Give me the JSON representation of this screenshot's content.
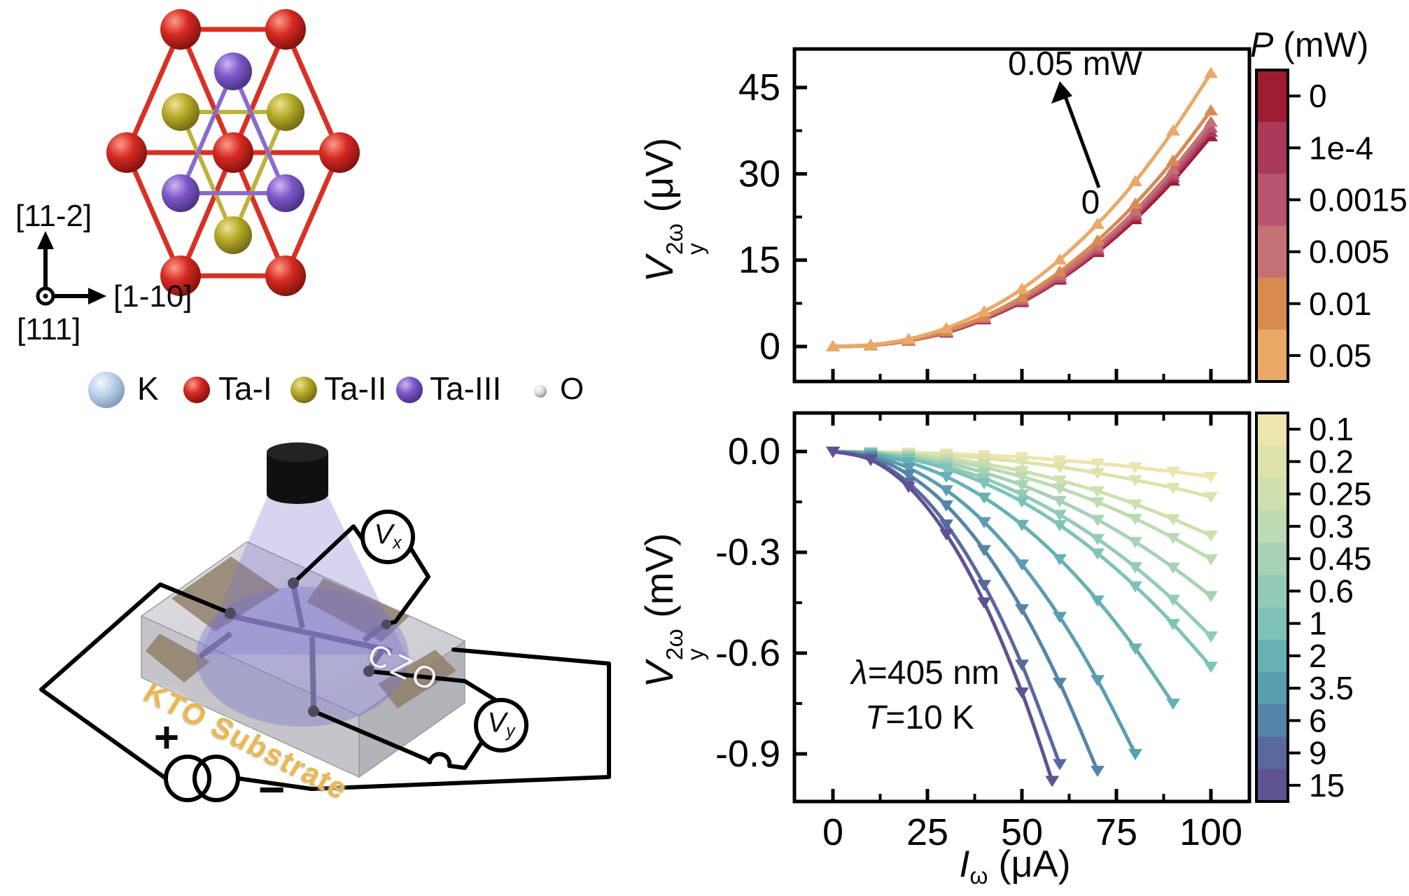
{
  "crystal": {
    "axes": {
      "up": "[11-2]",
      "right": "[1-10]",
      "out": "[111]"
    },
    "legend": {
      "items": [
        {
          "label": "K",
          "color": "#b8cfe8"
        },
        {
          "label": "Ta-I",
          "color": "#d42a22"
        },
        {
          "label": "Ta-II",
          "color": "#b5aa28"
        },
        {
          "label": "Ta-III",
          "color": "#7c58c8"
        },
        {
          "label": "O",
          "color": "#d8d8d8"
        }
      ]
    }
  },
  "device": {
    "czo_label": "CZO",
    "substrate_label": "KTO Substrate",
    "vx": {
      "sym": "V",
      "sub": "x"
    },
    "vy": {
      "sym": "V",
      "sub": "y"
    },
    "plus": "+",
    "minus": "−"
  },
  "chart_data": [
    {
      "type": "line",
      "ylabel": {
        "sym": "V",
        "sub": "y",
        "sup": "2ω",
        "unit": "(μV)"
      },
      "axis": {
        "x_ticks": {
          "values": [
            0,
            25,
            50,
            75,
            100
          ],
          "labels": [
            "0",
            "25",
            "50",
            "75",
            "100"
          ]
        },
        "y_ticks": {
          "values": [
            0,
            15,
            30,
            45
          ],
          "labels": [
            "0",
            "15",
            "30",
            "45"
          ]
        },
        "xlim": [
          -10,
          110
        ],
        "ylim": [
          -6,
          51
        ]
      },
      "annotations": {
        "max_label": "0.05 mW",
        "min_label": "0"
      },
      "colorbar": {
        "title": {
          "sym": "P",
          "unit": " (mW)"
        },
        "labels": [
          "0",
          "1e-4",
          "0.0015",
          "0.005",
          "0.01",
          "0.05"
        ],
        "colors": [
          "#9e1c30",
          "#aa3a59",
          "#b85573",
          "#c47173",
          "#d98a51",
          "#e9a967"
        ]
      },
      "series": [
        {
          "name": "0",
          "color": "#9e1c30",
          "x": [
            0,
            10,
            20,
            30,
            40,
            50,
            60,
            70,
            80,
            90,
            100
          ],
          "values": [
            0,
            0.2,
            1.0,
            2.4,
            4.7,
            7.7,
            11.6,
            16.4,
            22.1,
            28.8,
            36.5
          ]
        },
        {
          "name": "1e-4",
          "color": "#aa3a59",
          "x": [
            0,
            10,
            20,
            30,
            40,
            50,
            60,
            70,
            80,
            90,
            100
          ],
          "values": [
            0,
            0.2,
            1.0,
            2.5,
            4.8,
            7.8,
            11.8,
            16.7,
            22.6,
            29.4,
            37.3
          ]
        },
        {
          "name": "0.0015",
          "color": "#b85573",
          "x": [
            0,
            10,
            20,
            30,
            40,
            50,
            60,
            70,
            80,
            90,
            100
          ],
          "values": [
            0,
            0.2,
            1.0,
            2.5,
            4.9,
            8.0,
            12.0,
            17.0,
            23.0,
            30.0,
            38.0
          ]
        },
        {
          "name": "0.005",
          "color": "#c47173",
          "x": [
            0,
            10,
            20,
            30,
            40,
            50,
            60,
            70,
            80,
            90,
            100
          ],
          "values": [
            0,
            0.2,
            1.0,
            2.6,
            5.0,
            8.2,
            12.4,
            17.5,
            23.6,
            30.8,
            39.0
          ]
        },
        {
          "name": "0.01",
          "color": "#d98a51",
          "x": [
            0,
            10,
            20,
            30,
            40,
            50,
            60,
            70,
            80,
            90,
            100
          ],
          "values": [
            0,
            0.2,
            1.1,
            2.7,
            5.2,
            8.6,
            13.0,
            18.4,
            24.8,
            32.3,
            41.0
          ]
        },
        {
          "name": "0.05",
          "color": "#e9a967",
          "x": [
            0,
            10,
            20,
            30,
            40,
            50,
            60,
            70,
            80,
            90,
            100
          ],
          "values": [
            0,
            0.3,
            1.3,
            3.2,
            6.1,
            10.0,
            15.1,
            21.3,
            28.7,
            37.5,
            47.5
          ]
        }
      ]
    },
    {
      "type": "line",
      "ylabel": {
        "sym": "V",
        "sub": "y",
        "sup": "2ω",
        "unit": "(mV)"
      },
      "xlabel": {
        "sym": "I",
        "sub": "ω",
        "unit": " (μA)"
      },
      "axis": {
        "x_ticks": {
          "values": [
            0,
            25,
            50,
            75,
            100
          ],
          "labels": [
            "0",
            "25",
            "50",
            "75",
            "100"
          ]
        },
        "y_ticks": {
          "values": [
            0,
            -0.3,
            -0.6,
            -0.9
          ],
          "labels": [
            "0.0",
            "-0.3",
            "-0.6",
            "-0.9"
          ]
        },
        "xlim": [
          -10,
          110
        ],
        "ylim": [
          -1.05,
          0.11
        ]
      },
      "annotations": {
        "line1": {
          "sym": "λ",
          "rest": "=405 nm"
        },
        "line2": {
          "sym": "T",
          "rest": "=10 K"
        }
      },
      "colorbar": {
        "labels": [
          "0.1",
          "0.2",
          "0.25",
          "0.3",
          "0.45",
          "0.6",
          "1",
          "2",
          "3.5",
          "6",
          "9",
          "15"
        ],
        "colors": [
          "#ece5ae",
          "#dee3ac",
          "#cfe0ae",
          "#bddbb2",
          "#a7d2b5",
          "#93cbb8",
          "#7fc2b8",
          "#66b1b4",
          "#5a9db0",
          "#5584a8",
          "#58699f",
          "#5e5292"
        ]
      },
      "series": [
        {
          "name": "0.1",
          "color": "#ece5ae",
          "x": [
            0,
            10,
            20,
            30,
            40,
            50,
            60,
            70,
            80,
            90,
            100
          ],
          "values": [
            0,
            -0.001,
            -0.003,
            -0.006,
            -0.011,
            -0.017,
            -0.026,
            -0.035,
            -0.047,
            -0.06,
            -0.075
          ]
        },
        {
          "name": "0.2",
          "color": "#dee3ac",
          "x": [
            0,
            10,
            20,
            30,
            40,
            50,
            60,
            70,
            80,
            90,
            100
          ],
          "values": [
            0,
            -0.001,
            -0.005,
            -0.011,
            -0.02,
            -0.031,
            -0.046,
            -0.064,
            -0.085,
            -0.108,
            -0.135
          ]
        },
        {
          "name": "0.25",
          "color": "#cfe0ae",
          "x": [
            0,
            10,
            20,
            30,
            40,
            50,
            60,
            70,
            80,
            90,
            100
          ],
          "values": [
            0,
            -0.002,
            -0.009,
            -0.02,
            -0.037,
            -0.058,
            -0.086,
            -0.118,
            -0.157,
            -0.201,
            -0.25
          ]
        },
        {
          "name": "0.3",
          "color": "#bddbb2",
          "x": [
            0,
            10,
            20,
            30,
            40,
            50,
            60,
            70,
            80,
            90,
            100
          ],
          "values": [
            0,
            -0.003,
            -0.011,
            -0.026,
            -0.047,
            -0.075,
            -0.109,
            -0.151,
            -0.2,
            -0.257,
            -0.32
          ]
        },
        {
          "name": "0.45",
          "color": "#a7d2b5",
          "x": [
            0,
            10,
            20,
            30,
            40,
            50,
            60,
            70,
            80,
            90,
            100
          ],
          "values": [
            0,
            -0.003,
            -0.015,
            -0.034,
            -0.063,
            -0.1,
            -0.147,
            -0.203,
            -0.269,
            -0.345,
            -0.43
          ]
        },
        {
          "name": "0.6",
          "color": "#93cbb8",
          "x": [
            0,
            10,
            20,
            30,
            40,
            50,
            60,
            70,
            80,
            90,
            100
          ],
          "values": [
            0,
            -0.004,
            -0.019,
            -0.044,
            -0.08,
            -0.128,
            -0.188,
            -0.26,
            -0.344,
            -0.441,
            -0.55
          ]
        },
        {
          "name": "1",
          "color": "#7fc2b8",
          "x": [
            0,
            10,
            20,
            30,
            40,
            50,
            60,
            70,
            80,
            90,
            100
          ],
          "values": [
            0,
            -0.005,
            -0.022,
            -0.051,
            -0.094,
            -0.149,
            -0.219,
            -0.303,
            -0.401,
            -0.513,
            -0.64
          ]
        },
        {
          "name": "2",
          "color": "#66b1b4",
          "x": [
            0,
            10,
            20,
            30,
            40,
            50,
            60,
            70,
            80,
            90
          ],
          "values": [
            0,
            -0.007,
            -0.032,
            -0.075,
            -0.137,
            -0.218,
            -0.32,
            -0.443,
            -0.586,
            -0.75
          ]
        },
        {
          "name": "3.5",
          "color": "#5a9db0",
          "x": [
            0,
            10,
            20,
            30,
            40,
            50,
            60,
            70,
            80
          ],
          "values": [
            0,
            -0.012,
            -0.049,
            -0.115,
            -0.21,
            -0.336,
            -0.492,
            -0.68,
            -0.9
          ]
        },
        {
          "name": "6",
          "color": "#5584a8",
          "x": [
            0,
            10,
            20,
            30,
            40,
            50,
            60,
            70
          ],
          "values": [
            0,
            -0.016,
            -0.069,
            -0.16,
            -0.293,
            -0.469,
            -0.688,
            -0.95
          ]
        },
        {
          "name": "9",
          "color": "#58699f",
          "x": [
            0,
            10,
            20,
            30,
            40,
            50,
            60
          ],
          "values": [
            0,
            -0.022,
            -0.093,
            -0.217,
            -0.397,
            -0.634,
            -0.93
          ]
        },
        {
          "name": "15",
          "color": "#5e5292",
          "x": [
            0,
            10,
            20,
            30,
            40,
            50,
            58
          ],
          "values": [
            0,
            -0.025,
            -0.105,
            -0.246,
            -0.449,
            -0.717,
            -0.98
          ]
        }
      ]
    }
  ]
}
